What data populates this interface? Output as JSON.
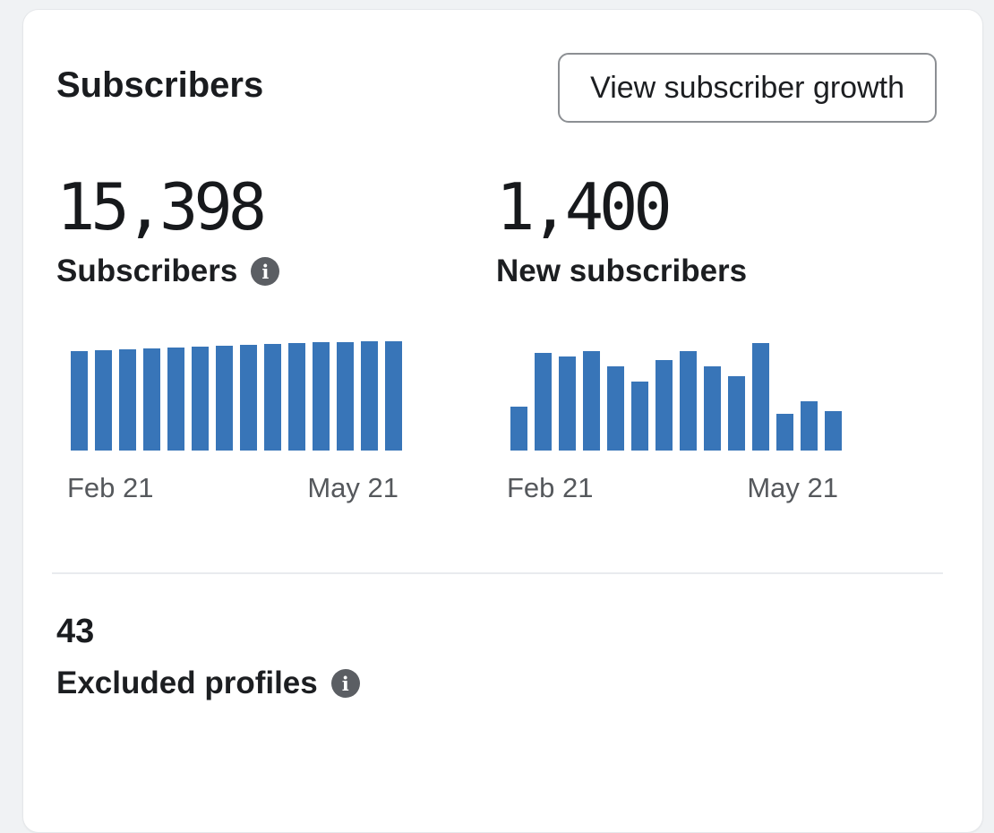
{
  "card": {
    "title": "Subscribers",
    "button_label": "View subscriber growth",
    "stats": [
      {
        "value": "15,398",
        "label": "Subscribers"
      },
      {
        "value": "1,400",
        "label": "New subscribers"
      }
    ],
    "excluded": {
      "value": "43",
      "label": "Excluded profiles"
    }
  },
  "icons": {
    "info_glyph": "i"
  },
  "colors": {
    "bar_blue": "#3875B8",
    "info_icon_gray": "#5B5E63",
    "axis_label_gray": "#55585C",
    "divider_gray": "#E9EBEE",
    "card_background": "#FFFFFF",
    "page_background": "#F0F2F4",
    "button_border_gray": "#8C8F93"
  },
  "chart_data": [
    {
      "type": "bar",
      "title": "Subscribers",
      "xlabel": "",
      "ylabel": "",
      "x_tick_labels": [
        "Feb 21",
        "May 21"
      ],
      "values": [
        14056,
        14184,
        14307,
        14437,
        14547,
        14637,
        14755,
        14885,
        14995,
        15092,
        15233,
        15281,
        15346,
        15398
      ],
      "ylim": [
        0,
        15398
      ],
      "bar_color": "#3875B8",
      "grid": false,
      "legend": false
    },
    {
      "type": "bar",
      "title": "New subscribers",
      "xlabel": "",
      "ylabel": "",
      "x_tick_labels": [
        "Feb 21",
        "May 21"
      ],
      "values": [
        58,
        128,
        123,
        130,
        110,
        90,
        118,
        130,
        110,
        97,
        141,
        48,
        65,
        52
      ],
      "ylim": [
        0,
        143
      ],
      "bar_color": "#3875B8",
      "grid": false,
      "legend": false
    }
  ]
}
